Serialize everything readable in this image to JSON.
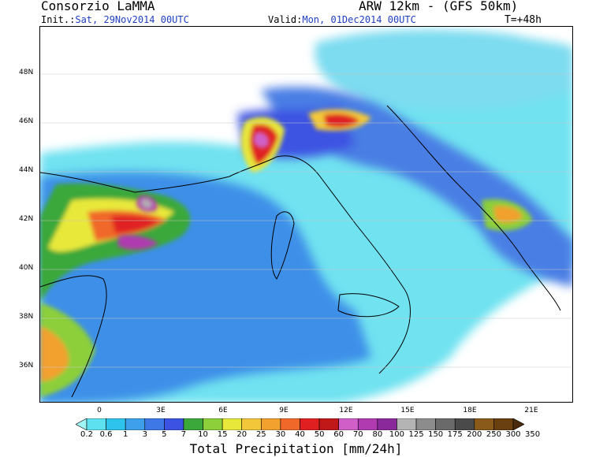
{
  "header": {
    "organization": "Consorzio LaMMA",
    "model": "ARW 12km - (GFS 50km)",
    "init_label": "Init.:",
    "init_value": "Sat, 29Nov2014 00UTC",
    "valid_label": "Valid:",
    "valid_value": "Mon, 01Dec2014 00UTC",
    "lead_time": "T=+48h"
  },
  "axes": {
    "lat_labels": [
      "48N",
      "46N",
      "44N",
      "42N",
      "40N",
      "38N",
      "36N"
    ],
    "lon_labels": [
      "0",
      "3E",
      "6E",
      "9E",
      "12E",
      "15E",
      "18E",
      "21E"
    ]
  },
  "colorbar": {
    "title": "Total Precipitation [mm/24h]",
    "labels": [
      "0.2",
      "0.6",
      "1",
      "3",
      "5",
      "7",
      "10",
      "15",
      "20",
      "25",
      "30",
      "40",
      "50",
      "60",
      "70",
      "80",
      "100",
      "125",
      "150",
      "175",
      "200",
      "250",
      "300",
      "350"
    ],
    "colors": [
      "#9ff5f5",
      "#5de0f0",
      "#2ec3ec",
      "#3ea0ea",
      "#3d78e6",
      "#3c52e2",
      "#3aa83a",
      "#8ccf3a",
      "#e8e83a",
      "#f2c83a",
      "#f2a02e",
      "#f0682a",
      "#e02020",
      "#c01818",
      "#d060c8",
      "#b03ab0",
      "#8a2a9a",
      "#b4b4b4",
      "#8c8c8c",
      "#6a6a6a",
      "#4a4a4a",
      "#8a5a1a",
      "#6a4010",
      "#4a2a0a"
    ]
  }
}
